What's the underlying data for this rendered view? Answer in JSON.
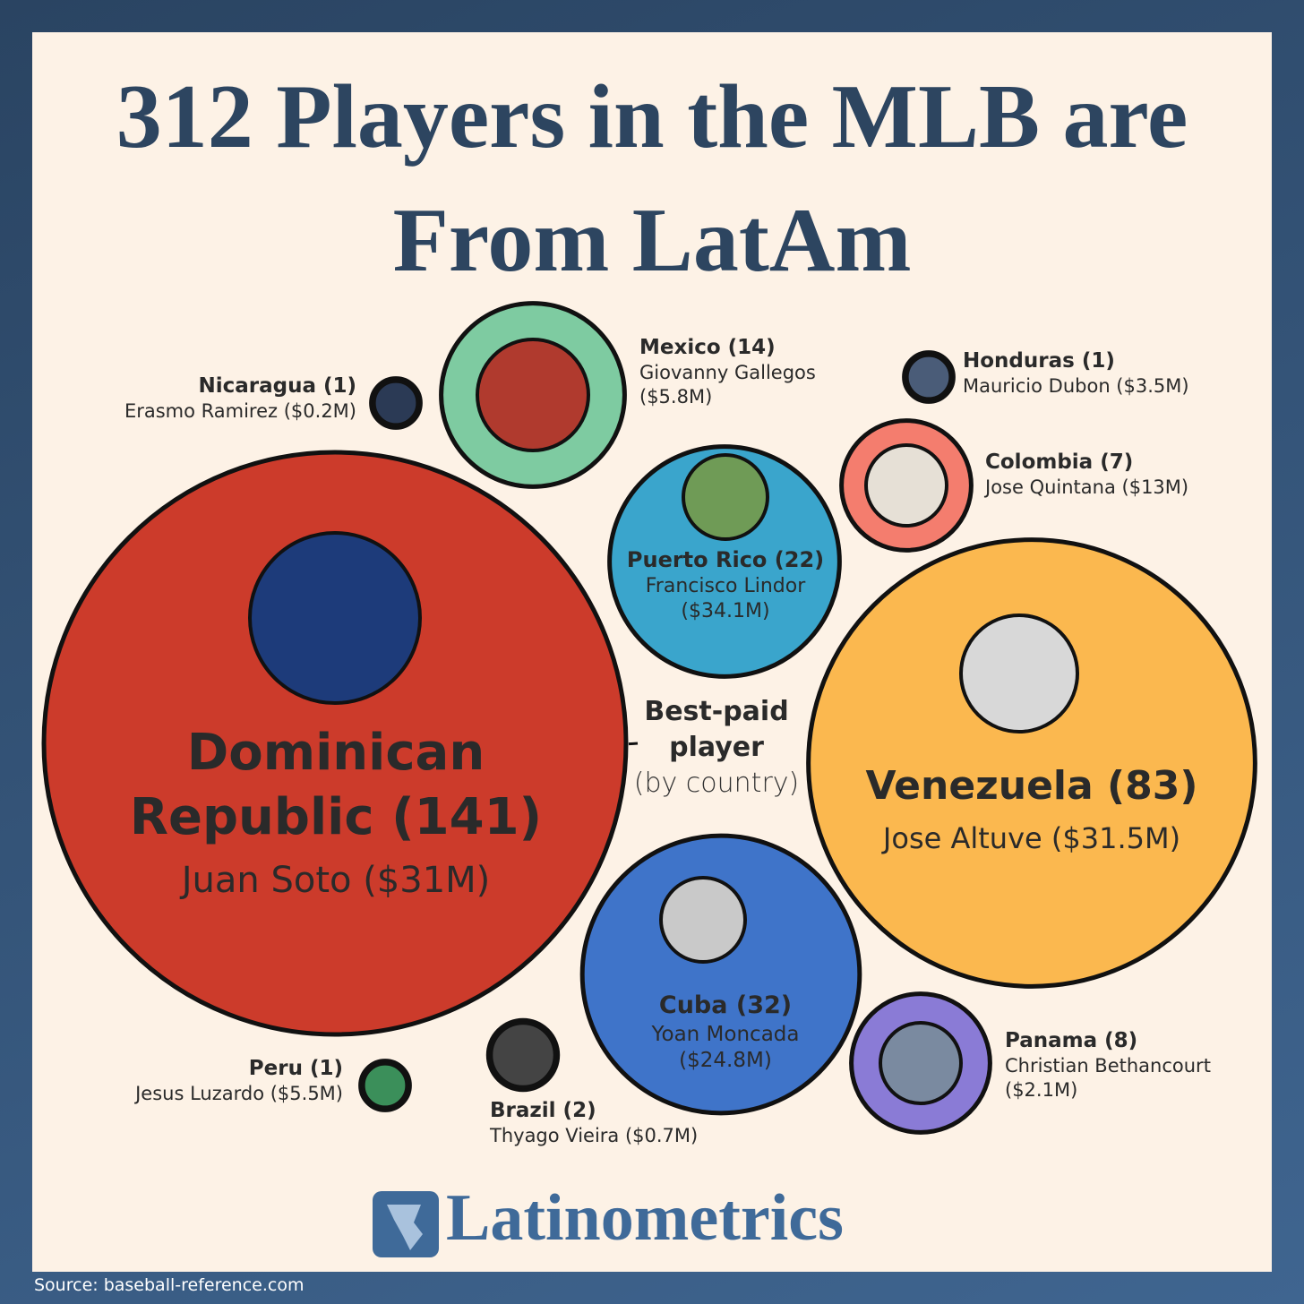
{
  "chart_data": {
    "type": "bubble",
    "title": "312 Players in the MLB are From LatAm",
    "annotation": "Best-paid player",
    "annotation_note": "(by country)",
    "brand": "Latinometrics",
    "source": "Source: baseball-reference.com",
    "labels": [
      "Dominican Republic (141)",
      "Venezuela (83)",
      "Cuba (32)",
      "Puerto Rico (22)",
      "Mexico (14)",
      "Panama (8)",
      "Colombia (7)",
      "Brazil (2)",
      "Nicaragua (1)",
      "Honduras (1)",
      "Peru (1)"
    ],
    "values": [
      141,
      83,
      32,
      22,
      14,
      8,
      7,
      2,
      1,
      1,
      1
    ],
    "players": [
      "Juan Soto ($31M)",
      "Jose Altuve ($31.5M)",
      "Yoan Moncada ($24.8M)",
      "Francisco Lindor ($34.1M)",
      "Giovanny Gallegos ($5.8M)",
      "Christian Bethancourt ($2.1M)",
      "Jose Quintana ($13M)",
      "Thyago Vieira ($0.7M)",
      "Erasmo Ramirez ($0.2M)",
      "Mauricio Dubon ($3.5M)",
      "Jesus Luzardo ($5.5M)"
    ],
    "colors": [
      "#cc3b2b",
      "#fbb84f",
      "#3f74c9",
      "#3aa5cc",
      "#7ecba1",
      "#8a7bd6",
      "#f47d6e",
      "#e8e2d8",
      "#e8e2d8",
      "#e8e2d8",
      "#e8e2d8"
    ]
  }
}
